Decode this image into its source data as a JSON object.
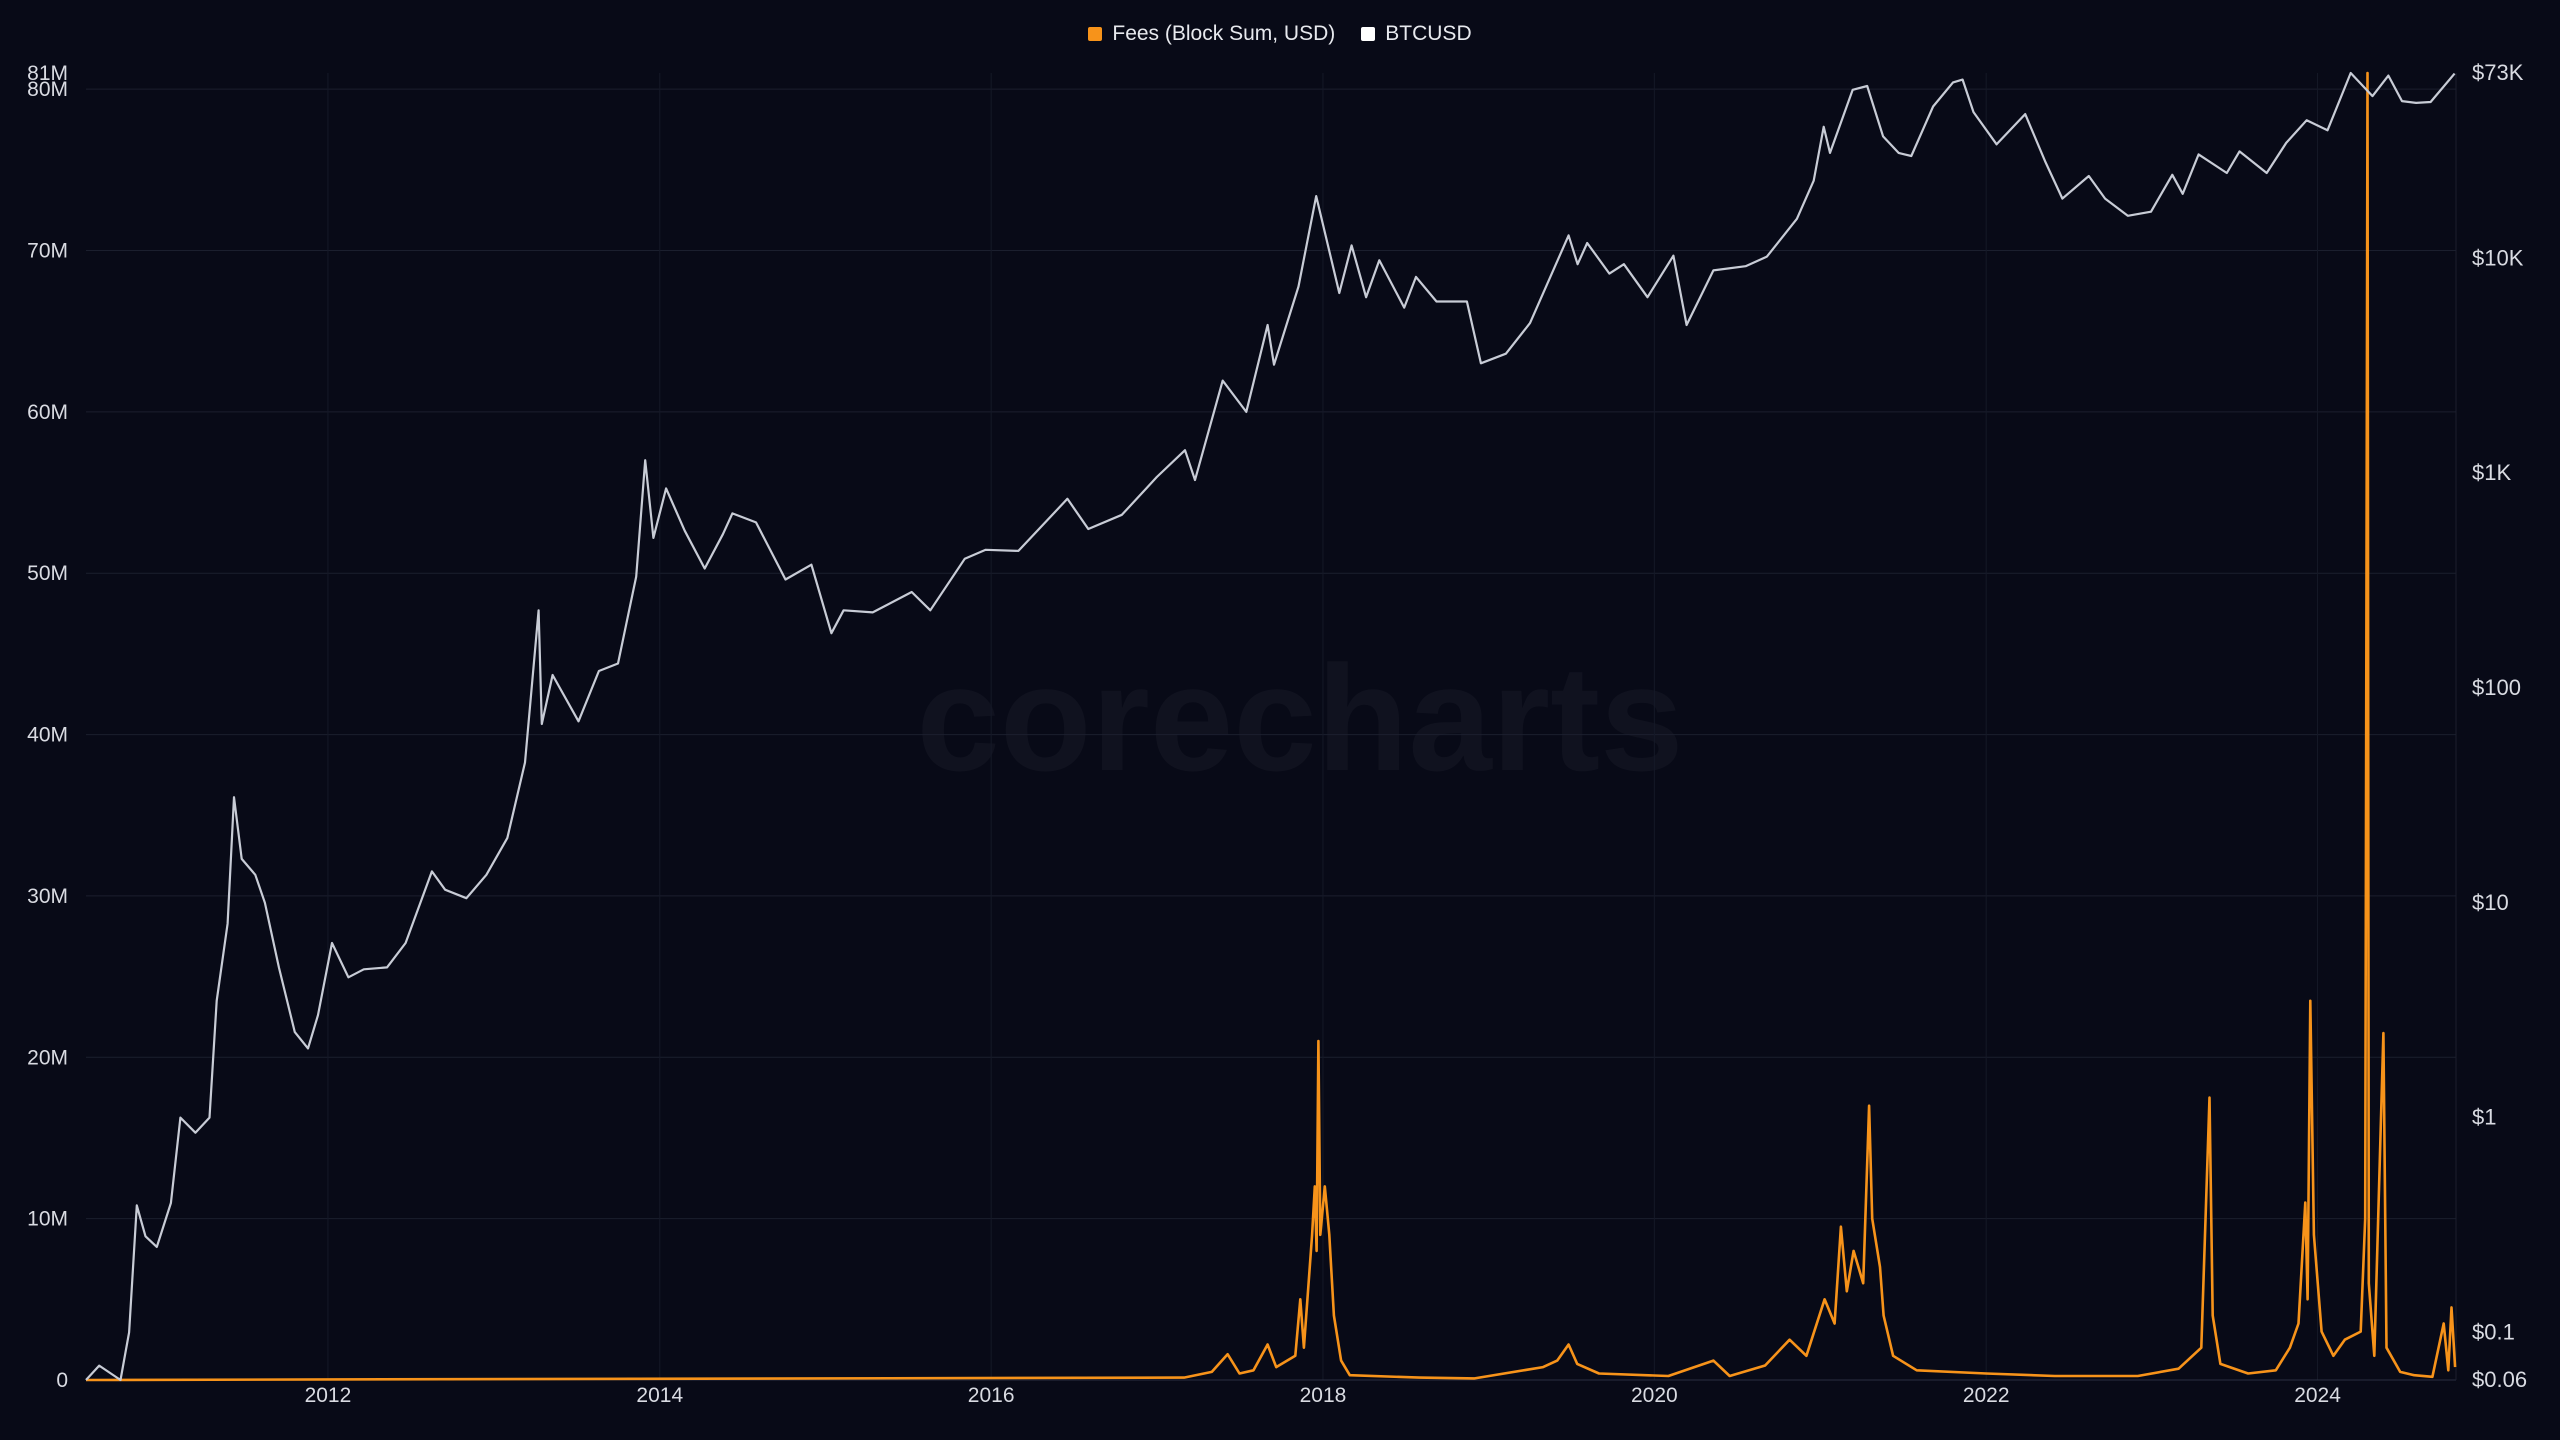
{
  "chart_data": {
    "type": "line",
    "watermark": "corecharts",
    "legend": {
      "placement": "top-center",
      "entries": [
        {
          "name": "Fees (Block Sum, USD)",
          "color": "#f7931a"
        },
        {
          "name": "BTCUSD",
          "color": "#ffffff"
        }
      ]
    },
    "x_axis": {
      "type": "date",
      "range": [
        "2010-07-17",
        "2024-11-01"
      ],
      "tick_labels": [
        "2012",
        "2014",
        "2016",
        "2018",
        "2020",
        "2022",
        "2024"
      ]
    },
    "y_left": {
      "label": "",
      "scale": "linear",
      "range": [
        0,
        81000000
      ],
      "tick_values": [
        0,
        10000000,
        20000000,
        30000000,
        40000000,
        50000000,
        60000000,
        70000000,
        80000000,
        81000000
      ],
      "tick_labels": [
        "0",
        "10M",
        "20M",
        "30M",
        "40M",
        "50M",
        "60M",
        "70M",
        "80M",
        "81M"
      ]
    },
    "y_right": {
      "label": "",
      "scale": "log",
      "range": [
        0.06,
        73000
      ],
      "tick_values": [
        0.06,
        0.1,
        1,
        10,
        100,
        1000,
        10000,
        73000
      ],
      "tick_labels": [
        "$0.06",
        "$0.1",
        "$1",
        "$10",
        "$100",
        "$1K",
        "$10K",
        "$73K"
      ]
    },
    "grid": true,
    "series": [
      {
        "name": "BTCUSD",
        "axis": "right",
        "color": "#c8ccd6",
        "points": [
          [
            "2010-07-17",
            0.06
          ],
          [
            "2010-08-15",
            0.07
          ],
          [
            "2010-10-01",
            0.06
          ],
          [
            "2010-10-20",
            0.1
          ],
          [
            "2010-11-06",
            0.39
          ],
          [
            "2010-11-25",
            0.28
          ],
          [
            "2010-12-20",
            0.25
          ],
          [
            "2011-01-20",
            0.4
          ],
          [
            "2011-02-10",
            1.0
          ],
          [
            "2011-03-15",
            0.85
          ],
          [
            "2011-04-15",
            1.0
          ],
          [
            "2011-05-01",
            3.5
          ],
          [
            "2011-05-25",
            8.0
          ],
          [
            "2011-06-08",
            31.0
          ],
          [
            "2011-06-25",
            16.0
          ],
          [
            "2011-07-25",
            13.5
          ],
          [
            "2011-08-15",
            10.0
          ],
          [
            "2011-09-15",
            5.0
          ],
          [
            "2011-10-20",
            2.5
          ],
          [
            "2011-11-18",
            2.1
          ],
          [
            "2011-12-10",
            3.0
          ],
          [
            "2012-01-10",
            6.5
          ],
          [
            "2012-02-15",
            4.5
          ],
          [
            "2012-03-20",
            4.9
          ],
          [
            "2012-05-10",
            5.0
          ],
          [
            "2012-06-20",
            6.5
          ],
          [
            "2012-08-17",
            14.0
          ],
          [
            "2012-09-15",
            11.5
          ],
          [
            "2012-11-01",
            10.5
          ],
          [
            "2012-12-15",
            13.5
          ],
          [
            "2013-01-30",
            20.0
          ],
          [
            "2013-03-10",
            45.0
          ],
          [
            "2013-04-09",
            230.0
          ],
          [
            "2013-04-16",
            68.0
          ],
          [
            "2013-05-10",
            115.0
          ],
          [
            "2013-07-06",
            70.0
          ],
          [
            "2013-08-20",
            120.0
          ],
          [
            "2013-10-01",
            130.0
          ],
          [
            "2013-11-10",
            330.0
          ],
          [
            "2013-11-30",
            1150.0
          ],
          [
            "2013-12-18",
            500.0
          ],
          [
            "2014-01-15",
            850.0
          ],
          [
            "2014-02-25",
            540.0
          ],
          [
            "2014-04-10",
            360.0
          ],
          [
            "2014-05-20",
            520.0
          ],
          [
            "2014-06-10",
            650.0
          ],
          [
            "2014-08-01",
            590.0
          ],
          [
            "2014-10-05",
            320.0
          ],
          [
            "2014-12-01",
            375.0
          ],
          [
            "2015-01-14",
            180.0
          ],
          [
            "2015-02-10",
            230.0
          ],
          [
            "2015-04-15",
            225.0
          ],
          [
            "2015-07-10",
            280.0
          ],
          [
            "2015-08-20",
            230.0
          ],
          [
            "2015-11-04",
            400.0
          ],
          [
            "2015-12-20",
            440.0
          ],
          [
            "2016-03-01",
            435.0
          ],
          [
            "2016-06-17",
            760.0
          ],
          [
            "2016-08-02",
            550.0
          ],
          [
            "2016-10-15",
            640.0
          ],
          [
            "2016-12-31",
            960.0
          ],
          [
            "2017-03-03",
            1280.0
          ],
          [
            "2017-03-25",
            930.0
          ],
          [
            "2017-05-25",
            2700.0
          ],
          [
            "2017-07-16",
            1930.0
          ],
          [
            "2017-09-01",
            4900.0
          ],
          [
            "2017-09-15",
            3200.0
          ],
          [
            "2017-11-08",
            7400.0
          ],
          [
            "2017-12-17",
            19500.0
          ],
          [
            "2018-02-06",
            6900.0
          ],
          [
            "2018-03-05",
            11500.0
          ],
          [
            "2018-04-06",
            6600.0
          ],
          [
            "2018-05-05",
            9800.0
          ],
          [
            "2018-06-29",
            5900.0
          ],
          [
            "2018-07-25",
            8200.0
          ],
          [
            "2018-09-08",
            6300.0
          ],
          [
            "2018-11-14",
            6300.0
          ],
          [
            "2018-12-15",
            3250.0
          ],
          [
            "2019-02-08",
            3600.0
          ],
          [
            "2019-04-02",
            5000.0
          ],
          [
            "2019-06-26",
            12800.0
          ],
          [
            "2019-07-16",
            9400.0
          ],
          [
            "2019-08-06",
            11800.0
          ],
          [
            "2019-09-24",
            8500.0
          ],
          [
            "2019-10-26",
            9400.0
          ],
          [
            "2019-12-17",
            6600.0
          ],
          [
            "2020-02-12",
            10300.0
          ],
          [
            "2020-03-12",
            4900.0
          ],
          [
            "2020-05-10",
            8800.0
          ],
          [
            "2020-07-20",
            9200.0
          ],
          [
            "2020-09-05",
            10200.0
          ],
          [
            "2020-11-10",
            15300.0
          ],
          [
            "2020-12-17",
            23000.0
          ],
          [
            "2021-01-08",
            41000.0
          ],
          [
            "2021-01-22",
            31000.0
          ],
          [
            "2021-03-13",
            61000.0
          ],
          [
            "2021-04-14",
            63500.0
          ],
          [
            "2021-05-19",
            37000.0
          ],
          [
            "2021-06-22",
            31000.0
          ],
          [
            "2021-07-20",
            30000.0
          ],
          [
            "2021-09-06",
            51000.0
          ],
          [
            "2021-10-20",
            66000.0
          ],
          [
            "2021-11-10",
            68000.0
          ],
          [
            "2021-12-04",
            48000.0
          ],
          [
            "2022-01-24",
            34000.0
          ],
          [
            "2022-03-28",
            47000.0
          ],
          [
            "2022-05-12",
            28000.0
          ],
          [
            "2022-06-18",
            19000.0
          ],
          [
            "2022-08-15",
            24200.0
          ],
          [
            "2022-09-20",
            19000.0
          ],
          [
            "2022-11-09",
            15800.0
          ],
          [
            "2022-12-30",
            16500.0
          ],
          [
            "2023-02-15",
            24500.0
          ],
          [
            "2023-03-10",
            20000.0
          ],
          [
            "2023-04-14",
            30500.0
          ],
          [
            "2023-06-15",
            25000.0
          ],
          [
            "2023-07-13",
            31500.0
          ],
          [
            "2023-09-11",
            25000.0
          ],
          [
            "2023-10-24",
            34500.0
          ],
          [
            "2023-12-08",
            44000.0
          ],
          [
            "2024-01-23",
            39500.0
          ],
          [
            "2024-03-14",
            73000.0
          ],
          [
            "2024-05-01",
            57000.0
          ],
          [
            "2024-06-05",
            71000.0
          ],
          [
            "2024-07-05",
            54000.0
          ],
          [
            "2024-08-05",
            53000.0
          ],
          [
            "2024-09-06",
            53500.0
          ],
          [
            "2024-10-29",
            72500.0
          ]
        ]
      },
      {
        "name": "Fees (Block Sum, USD)",
        "axis": "left",
        "color": "#f7931a",
        "points": [
          [
            "2010-07-17",
            0
          ],
          [
            "2017-03-01",
            150000
          ],
          [
            "2017-05-01",
            500000
          ],
          [
            "2017-06-05",
            1600000
          ],
          [
            "2017-07-01",
            400000
          ],
          [
            "2017-08-01",
            600000
          ],
          [
            "2017-09-01",
            2200000
          ],
          [
            "2017-09-20",
            800000
          ],
          [
            "2017-11-01",
            1500000
          ],
          [
            "2017-11-12",
            5000000
          ],
          [
            "2017-11-20",
            2000000
          ],
          [
            "2017-12-08",
            9000000
          ],
          [
            "2017-12-14",
            12000000
          ],
          [
            "2017-12-18",
            8000000
          ],
          [
            "2017-12-22",
            21000000
          ],
          [
            "2017-12-26",
            9000000
          ],
          [
            "2018-01-05",
            12000000
          ],
          [
            "2018-01-15",
            9000000
          ],
          [
            "2018-01-25",
            4000000
          ],
          [
            "2018-02-10",
            1200000
          ],
          [
            "2018-03-01",
            300000
          ],
          [
            "2018-08-01",
            150000
          ],
          [
            "2018-12-01",
            100000
          ],
          [
            "2019-05-01",
            800000
          ],
          [
            "2019-06-01",
            1200000
          ],
          [
            "2019-06-26",
            2200000
          ],
          [
            "2019-07-15",
            1000000
          ],
          [
            "2019-09-01",
            400000
          ],
          [
            "2020-02-01",
            250000
          ],
          [
            "2020-05-10",
            1200000
          ],
          [
            "2020-06-15",
            250000
          ],
          [
            "2020-09-01",
            900000
          ],
          [
            "2020-10-25",
            2500000
          ],
          [
            "2020-12-01",
            1500000
          ],
          [
            "2021-01-10",
            5000000
          ],
          [
            "2021-02-01",
            3500000
          ],
          [
            "2021-02-15",
            9500000
          ],
          [
            "2021-02-28",
            5500000
          ],
          [
            "2021-03-15",
            8000000
          ],
          [
            "2021-04-05",
            6000000
          ],
          [
            "2021-04-18",
            17000000
          ],
          [
            "2021-04-25",
            10000000
          ],
          [
            "2021-05-12",
            7000000
          ],
          [
            "2021-05-20",
            4000000
          ],
          [
            "2021-06-10",
            1500000
          ],
          [
            "2021-08-01",
            600000
          ],
          [
            "2022-01-01",
            400000
          ],
          [
            "2022-06-01",
            250000
          ],
          [
            "2022-12-01",
            250000
          ],
          [
            "2023-03-01",
            700000
          ],
          [
            "2023-04-20",
            2000000
          ],
          [
            "2023-05-08",
            17500000
          ],
          [
            "2023-05-15",
            4000000
          ],
          [
            "2023-06-01",
            1000000
          ],
          [
            "2023-08-01",
            400000
          ],
          [
            "2023-10-01",
            600000
          ],
          [
            "2023-11-01",
            2000000
          ],
          [
            "2023-11-20",
            3500000
          ],
          [
            "2023-12-05",
            11000000
          ],
          [
            "2023-12-10",
            5000000
          ],
          [
            "2023-12-16",
            23500000
          ],
          [
            "2023-12-24",
            9000000
          ],
          [
            "2024-01-10",
            3000000
          ],
          [
            "2024-02-05",
            1500000
          ],
          [
            "2024-03-01",
            2500000
          ],
          [
            "2024-04-05",
            3000000
          ],
          [
            "2024-04-15",
            10000000
          ],
          [
            "2024-04-20",
            81000000
          ],
          [
            "2024-04-23",
            6000000
          ],
          [
            "2024-05-05",
            1500000
          ],
          [
            "2024-05-25",
            21500000
          ],
          [
            "2024-06-01",
            2000000
          ],
          [
            "2024-07-01",
            500000
          ],
          [
            "2024-08-01",
            300000
          ],
          [
            "2024-09-10",
            200000
          ],
          [
            "2024-10-05",
            3500000
          ],
          [
            "2024-10-15",
            600000
          ],
          [
            "2024-10-22",
            4500000
          ],
          [
            "2024-10-30",
            800000
          ]
        ]
      }
    ]
  }
}
